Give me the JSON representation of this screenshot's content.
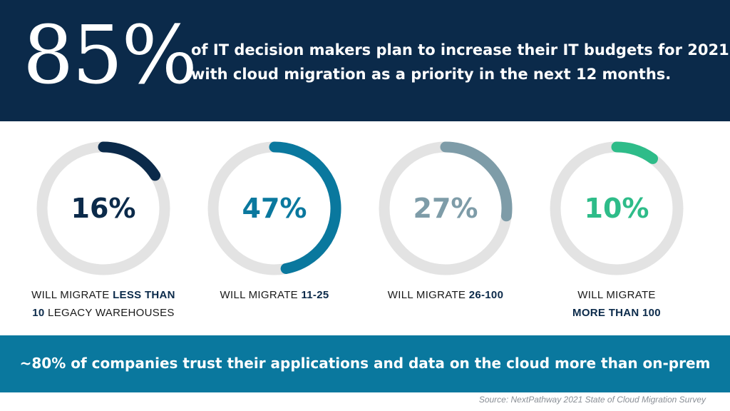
{
  "header": {
    "stat": "85%",
    "line1": "of IT decision makers plan to increase their IT budgets for 2021,",
    "line2": "with cloud migration as a priority in the next 12 months.",
    "bg": "#0b2a4a"
  },
  "chart_data": {
    "type": "donut",
    "track_color": "#e3e3e3",
    "series": [
      {
        "value": 16,
        "label": "16%",
        "color": "#0b2a4a",
        "caption_plain_1": "WILL MIGRATE ",
        "caption_bold_1": "LESS THAN",
        "caption_bold_2": "10",
        "caption_plain_2": " LEGACY WAREHOUSES"
      },
      {
        "value": 47,
        "label": "47%",
        "color": "#0a789e",
        "caption_plain_1": "WILL MIGRATE ",
        "caption_bold_1": "11-25",
        "caption_bold_2": "",
        "caption_plain_2": ""
      },
      {
        "value": 27,
        "label": "27%",
        "color": "#7e9ca8",
        "caption_plain_1": "WILL MIGRATE ",
        "caption_bold_1": "26-100",
        "caption_bold_2": "",
        "caption_plain_2": ""
      },
      {
        "value": 10,
        "label": "10%",
        "color": "#2ebc89",
        "caption_plain_1": "WILL MIGRATE",
        "caption_bold_1": "",
        "caption_bold_2": "MORE THAN 100",
        "caption_plain_2": ""
      }
    ]
  },
  "footer": {
    "text": "~80% of companies trust their applications and data on the cloud more than on-prem",
    "bg": "#0a789e"
  },
  "source": "Source: NextPathway 2021 State of Cloud Migration Survey"
}
